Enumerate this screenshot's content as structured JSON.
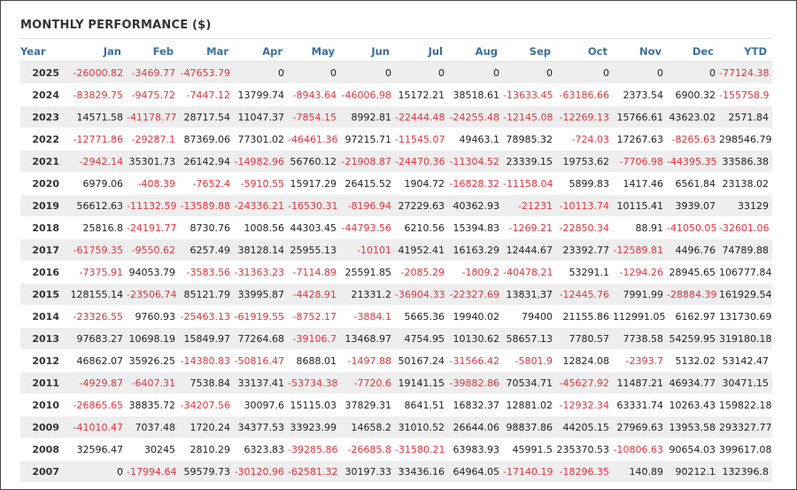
{
  "title": "MONTHLY PERFORMANCE ($)",
  "colors": {
    "negative": "#e8333c",
    "header": "#3a6f9e",
    "stripe": "#eeeeee"
  },
  "chart_data": {
    "type": "table",
    "title": "MONTHLY PERFORMANCE ($)",
    "columns": [
      "Year",
      "Jan",
      "Feb",
      "Mar",
      "Apr",
      "May",
      "Jun",
      "Jul",
      "Aug",
      "Sep",
      "Oct",
      "Nov",
      "Dec",
      "YTD"
    ],
    "rows": [
      [
        "2025",
        "-26000.82",
        "-3469.77",
        "-47653.79",
        "0",
        "0",
        "0",
        "0",
        "0",
        "0",
        "0",
        "0",
        "0",
        "-77124.38"
      ],
      [
        "2024",
        "-83829.75",
        "-9475.72",
        "-7447.12",
        "13799.74",
        "-8943.64",
        "-46006.98",
        "15172.21",
        "38518.61",
        "-13633.45",
        "-63186.66",
        "2373.54",
        "6900.32",
        "-155758.9"
      ],
      [
        "2023",
        "14571.58",
        "-41178.77",
        "28717.54",
        "11047.37",
        "-7854.15",
        "8992.81",
        "-22444.48",
        "-24255.48",
        "-12145.08",
        "-12269.13",
        "15766.61",
        "43623.02",
        "2571.84"
      ],
      [
        "2022",
        "-12771.86",
        "-29287.1",
        "87369.06",
        "77301.02",
        "-46461.36",
        "97215.71",
        "-11545.07",
        "49463.1",
        "78985.32",
        "-724.03",
        "17267.63",
        "-8265.63",
        "298546.79"
      ],
      [
        "2021",
        "-2942.14",
        "35301.73",
        "26142.94",
        "-14982.96",
        "56760.12",
        "-21908.87",
        "-24470.36",
        "-11304.52",
        "23339.15",
        "19753.62",
        "-7706.98",
        "-44395.35",
        "33586.38"
      ],
      [
        "2020",
        "6979.06",
        "-408.39",
        "-7652.4",
        "-5910.55",
        "15917.29",
        "26415.52",
        "1904.72",
        "-16828.32",
        "-11158.04",
        "5899.83",
        "1417.46",
        "6561.84",
        "23138.02"
      ],
      [
        "2019",
        "56612.63",
        "-11132.59",
        "-13589.88",
        "-24336.21",
        "-16530.31",
        "-8196.94",
        "27229.63",
        "40362.93",
        "-21231",
        "-10113.74",
        "10115.41",
        "3939.07",
        "33129"
      ],
      [
        "2018",
        "25816.8",
        "-24191.77",
        "8730.76",
        "1008.56",
        "44303.45",
        "-44793.56",
        "6210.56",
        "15394.83",
        "-1269.21",
        "-22850.34",
        "88.91",
        "-41050.05",
        "-32601.06"
      ],
      [
        "2017",
        "-61759.35",
        "-9550.62",
        "6257.49",
        "38128.14",
        "25955.13",
        "-10101",
        "41952.41",
        "16163.29",
        "12444.67",
        "23392.77",
        "-12589.81",
        "4496.76",
        "74789.88"
      ],
      [
        "2016",
        "-7375.91",
        "94053.79",
        "-3583.56",
        "-31363.23",
        "-7114.89",
        "25591.85",
        "-2085.29",
        "-1809.2",
        "-40478.21",
        "53291.1",
        "-1294.26",
        "28945.65",
        "106777.84"
      ],
      [
        "2015",
        "128155.14",
        "-23506.74",
        "85121.79",
        "33995.87",
        "-4428.91",
        "21331.2",
        "-36904.33",
        "-22327.69",
        "13831.37",
        "-12445.76",
        "7991.99",
        "-28884.39",
        "161929.54"
      ],
      [
        "2014",
        "-23326.55",
        "9760.93",
        "-25463.13",
        "-61919.55",
        "-8752.17",
        "-3884.1",
        "5665.36",
        "19940.02",
        "79400",
        "21155.86",
        "112991.05",
        "6162.97",
        "131730.69"
      ],
      [
        "2013",
        "97683.27",
        "10698.19",
        "15849.97",
        "77264.68",
        "-39106.7",
        "13468.97",
        "4754.95",
        "10130.62",
        "58657.13",
        "7780.57",
        "7738.58",
        "54259.95",
        "319180.18"
      ],
      [
        "2012",
        "46862.07",
        "35926.25",
        "-14380.83",
        "-50816.47",
        "8688.01",
        "-1497.88",
        "50167.24",
        "-31566.42",
        "-5801.9",
        "12824.08",
        "-2393.7",
        "5132.02",
        "53142.47"
      ],
      [
        "2011",
        "-4929.87",
        "-6407.31",
        "7538.84",
        "33137.41",
        "-53734.38",
        "-7720.6",
        "19141.15",
        "-39882.86",
        "70534.71",
        "-45627.92",
        "11487.21",
        "46934.77",
        "30471.15"
      ],
      [
        "2010",
        "-26865.65",
        "38835.72",
        "-34207.56",
        "30097.6",
        "15115.03",
        "37829.31",
        "8641.51",
        "16832.37",
        "12881.02",
        "-12932.34",
        "63331.74",
        "10263.43",
        "159822.18"
      ],
      [
        "2009",
        "-41010.47",
        "7037.48",
        "1720.24",
        "34377.53",
        "33923.99",
        "14658.2",
        "31010.52",
        "26644.06",
        "98837.86",
        "44205.15",
        "27969.63",
        "13953.58",
        "293327.77"
      ],
      [
        "2008",
        "32596.47",
        "30245",
        "2810.29",
        "6323.83",
        "-39285.86",
        "-26685.8",
        "-31580.21",
        "63983.93",
        "45991.5",
        "235370.53",
        "-10806.63",
        "90654.03",
        "399617.08"
      ],
      [
        "2007",
        "0",
        "-17994.64",
        "59579.73",
        "-30120.96",
        "-62581.32",
        "30197.33",
        "33436.16",
        "64964.05",
        "-17140.19",
        "-18296.35",
        "140.89",
        "90212.1",
        "132396.8"
      ]
    ]
  }
}
